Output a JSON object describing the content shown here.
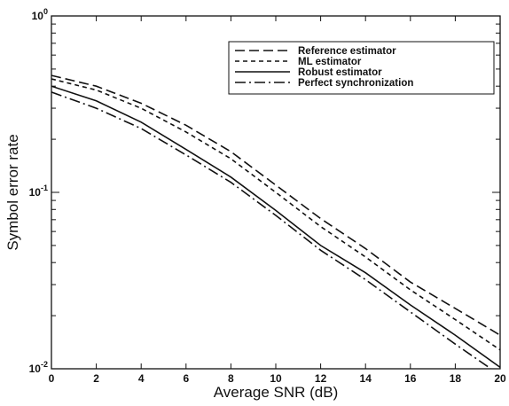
{
  "chart_data": {
    "type": "line",
    "title": "",
    "xlabel": "Average SNR (dB)",
    "ylabel": "Symbol error rate",
    "xlim": [
      0,
      20
    ],
    "ylim": [
      0.01,
      1
    ],
    "yscale": "log",
    "grid": false,
    "legend_position": "top-right",
    "x_ticks": [
      "0",
      "2",
      "4",
      "6",
      "8",
      "10",
      "12",
      "14",
      "16",
      "18",
      "20"
    ],
    "y_ticks": [
      {
        "value": 1,
        "base": "10",
        "exp": "0"
      },
      {
        "value": 0.1,
        "base": "10",
        "exp": "-1"
      },
      {
        "value": 0.01,
        "base": "10",
        "exp": "-2"
      }
    ],
    "x": [
      0,
      2,
      4,
      6,
      8,
      10,
      12,
      14,
      16,
      18,
      20
    ],
    "series": [
      {
        "name": "Reference estimator",
        "style": "long-dash",
        "values": [
          0.46,
          0.4,
          0.32,
          0.24,
          0.17,
          0.11,
          0.071,
          0.048,
          0.031,
          0.022,
          0.0155
        ]
      },
      {
        "name": "ML estimator",
        "style": "short-dash",
        "values": [
          0.44,
          0.38,
          0.3,
          0.22,
          0.155,
          0.1,
          0.064,
          0.043,
          0.028,
          0.019,
          0.0128
        ]
      },
      {
        "name": "Robust estimator",
        "style": "solid",
        "values": [
          0.4,
          0.33,
          0.25,
          0.175,
          0.122,
          0.079,
          0.05,
          0.035,
          0.023,
          0.0155,
          0.0102
        ]
      },
      {
        "name": "Perfect synchronization",
        "style": "dash-dot",
        "values": [
          0.37,
          0.3,
          0.23,
          0.163,
          0.114,
          0.074,
          0.047,
          0.032,
          0.021,
          0.0138,
          0.0092
        ]
      }
    ]
  }
}
